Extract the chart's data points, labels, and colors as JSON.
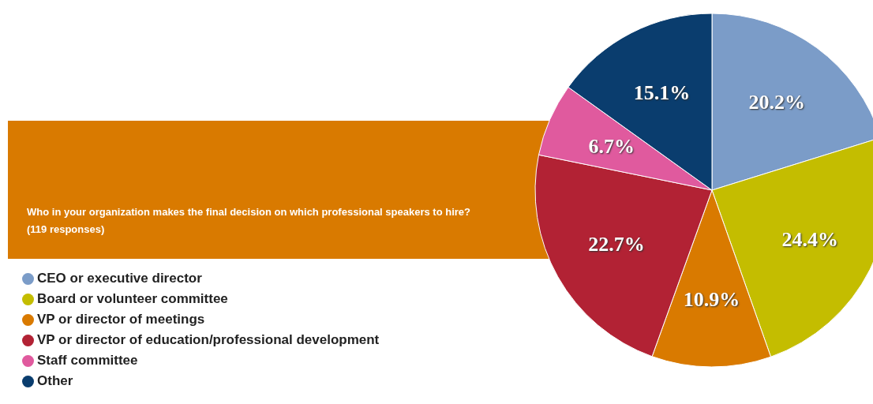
{
  "chart_data": {
    "type": "pie",
    "title": "Who in your organization makes the final decision on which professional speakers to hire?  (119 responses)",
    "categories": [
      "CEO or executive director",
      "Board or volunteer committee",
      "VP or director of meetings",
      "VP or director of education/professional development",
      "Staff committee",
      "Other"
    ],
    "values": [
      20.2,
      24.4,
      10.9,
      22.7,
      6.7,
      15.1
    ],
    "colors": [
      "#7b9cc8",
      "#c4bd00",
      "#d97a00",
      "#b22234",
      "#e05a9e",
      "#0a3d6e"
    ],
    "value_labels": [
      "20.2%",
      "24.4%",
      "10.9%",
      "22.7%",
      "6.7%",
      "15.1%"
    ],
    "legend": "bottom left"
  }
}
